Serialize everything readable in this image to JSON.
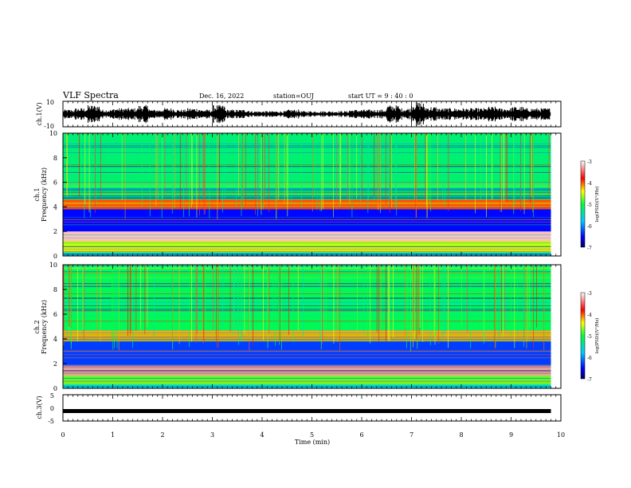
{
  "header": {
    "title": "VLF Spectra",
    "date": "Dec. 16, 2022",
    "station": "station=OUJ",
    "start": "start  UT  =   9 : 40 : 0"
  },
  "chart_data": [
    {
      "type": "line",
      "name": "ch1-waveform",
      "ylabel": "ch.1(V)",
      "ylim": [
        -10,
        10
      ],
      "yticks": [
        "10",
        "-10"
      ],
      "xlim": [
        0,
        10
      ],
      "x": [
        0.0,
        0.25,
        0.5,
        0.75,
        1.0,
        1.25,
        1.5,
        1.75,
        2.0,
        2.25,
        2.5,
        2.75,
        3.0,
        3.25,
        3.5,
        3.75,
        4.0,
        4.25,
        4.5,
        4.75,
        5.0,
        5.25,
        5.5,
        5.75,
        6.0,
        6.25,
        6.5,
        6.75,
        7.0,
        7.25,
        7.5,
        7.75,
        8.0,
        8.25,
        8.5,
        8.75,
        9.0,
        9.25,
        9.5,
        9.75
      ],
      "envelope": [
        3,
        4,
        6,
        3,
        4,
        4,
        6,
        3,
        4,
        3,
        4,
        3,
        6,
        3,
        3,
        2,
        2,
        2,
        3,
        2,
        2,
        2,
        2,
        3,
        3,
        3,
        6,
        4,
        8,
        5,
        4,
        4,
        4,
        4,
        5,
        4,
        5,
        4,
        4,
        4
      ]
    },
    {
      "type": "heatmap",
      "name": "ch1-spectrogram",
      "ylabel": "ch.1\nFrequency (kHz)",
      "xlim": [
        0,
        10
      ],
      "ylim": [
        0,
        10
      ],
      "yticks": [
        "0",
        "2",
        "4",
        "6",
        "8",
        "10"
      ],
      "bands": [
        {
          "f0": 0.3,
          "f1": 1.2,
          "level": -4.5
        },
        {
          "f0": 1.2,
          "f1": 2.0,
          "level": -3.2
        },
        {
          "f0": 2.0,
          "f1": 3.8,
          "level": -6.5
        },
        {
          "f0": 3.8,
          "f1": 4.6,
          "level": -4.0
        },
        {
          "f0": 4.6,
          "f1": 10.0,
          "level": -5.2
        }
      ],
      "colorbar": {
        "label": "log(PSD)(V²/Hz)",
        "min": -7,
        "max": -3,
        "ticks": [
          "-3",
          "-4",
          "-5",
          "-6",
          "-7"
        ]
      }
    },
    {
      "type": "heatmap",
      "name": "ch2-spectrogram",
      "ylabel": "ch.2\nFrequency (kHz)",
      "xlim": [
        0,
        10
      ],
      "ylim": [
        0,
        10
      ],
      "yticks": [
        "0",
        "2",
        "4",
        "6",
        "8",
        "10"
      ],
      "bands": [
        {
          "f0": 0.3,
          "f1": 1.0,
          "level": -4.8
        },
        {
          "f0": 1.0,
          "f1": 1.9,
          "level": -3.3
        },
        {
          "f0": 1.9,
          "f1": 3.8,
          "level": -6.3
        },
        {
          "f0": 3.8,
          "f1": 4.7,
          "level": -4.2
        },
        {
          "f0": 4.7,
          "f1": 10.0,
          "level": -5.1
        }
      ],
      "colorbar": {
        "label": "log(PSD)(V²/Hz)",
        "min": -7,
        "max": -3,
        "ticks": [
          "-3",
          "-4",
          "-5",
          "-6",
          "-7"
        ]
      }
    },
    {
      "type": "line",
      "name": "ch3-trace",
      "ylabel": "ch.3(V)",
      "ylim": [
        -5,
        5
      ],
      "yticks": [
        "5",
        "0",
        "-5"
      ],
      "xlim": [
        0,
        10
      ],
      "x": [
        0,
        9.8
      ],
      "y": [
        -1.2,
        -1.2
      ]
    }
  ],
  "xaxis": {
    "label": "Time (min)",
    "ticks": [
      "0",
      "1",
      "2",
      "3",
      "4",
      "5",
      "6",
      "7",
      "8",
      "9",
      "10"
    ]
  }
}
